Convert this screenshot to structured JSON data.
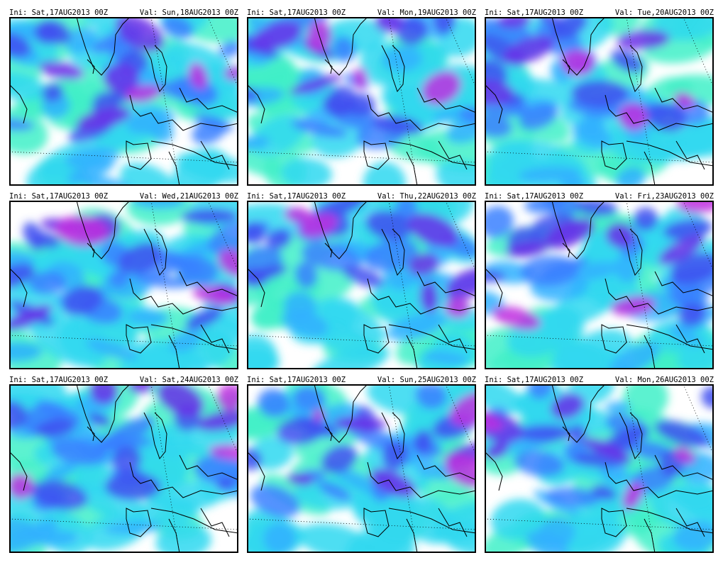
{
  "panels": [
    {
      "ini": "Ini: Sat,17AUG2013 00Z",
      "val": "Val: Sun,18AUG2013 00Z"
    },
    {
      "ini": "Ini: Sat,17AUG2013 00Z",
      "val": "Val: Mon,19AUG2013 00Z"
    },
    {
      "ini": "Ini: Sat,17AUG2013 00Z",
      "val": "Val: Tue,20AUG2013 00Z"
    },
    {
      "ini": "Ini: Sat,17AUG2013 00Z",
      "val": "Val: Wed,21AUG2013 00Z"
    },
    {
      "ini": "Ini: Sat,17AUG2013 00Z",
      "val": "Val: Thu,22AUG2013 00Z"
    },
    {
      "ini": "Ini: Sat,17AUG2013 00Z",
      "val": "Val: Fri,23AUG2013 00Z"
    },
    {
      "ini": "Ini: Sat,17AUG2013 00Z",
      "val": "Val: Sat,24AUG2013 00Z"
    },
    {
      "ini": "Ini: Sat,17AUG2013 00Z",
      "val": "Val: Sun,25AUG2013 00Z"
    },
    {
      "ini": "Ini: Sat,17AUG2013 00Z",
      "val": "Val: Mon,26AUG2013 00Z"
    }
  ]
}
